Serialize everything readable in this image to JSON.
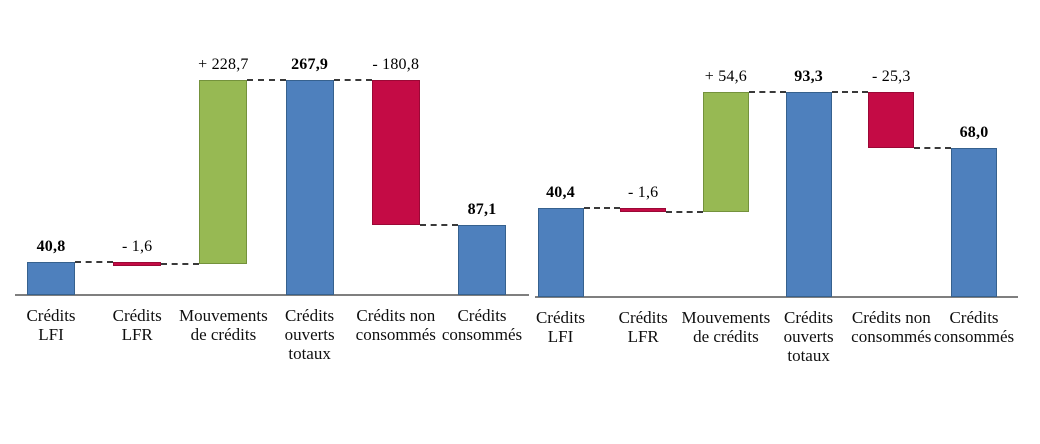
{
  "figure": {
    "background": "#ffffff"
  },
  "colors": {
    "total_bar": "#4E80BD",
    "total_bar_border": "#36618E",
    "increase_bar": "#97B953",
    "increase_bar_border": "#74923C",
    "decrease_bar": "#C40B45",
    "decrease_bar_border": "#9B0836",
    "axis_line": "#7F7F7F",
    "connector_line": "#3A3A3A",
    "text": "#000000"
  },
  "chart_data": [
    {
      "type": "waterfall",
      "side": "left",
      "title": "",
      "xlabel": "",
      "ylabel": "",
      "ylim": [
        0,
        267.9
      ],
      "grid": false,
      "legend": false,
      "categories": [
        "Crédits LFI",
        "Crédits LFR",
        "Mouvements de crédits",
        "Crédits ouverts totaux",
        "Crédits non consommés",
        "Crédits consommés"
      ],
      "bars": [
        {
          "category_lines": [
            "Crédits",
            "LFI"
          ],
          "value": 40.8,
          "value_label": "40,8",
          "kind": "total",
          "level_start": 0,
          "level_end": 40.8,
          "bold_label": true
        },
        {
          "category_lines": [
            "Crédits",
            "LFR"
          ],
          "value": -1.6,
          "value_label": "- 1,6",
          "kind": "decrease",
          "level_start": 40.8,
          "level_end": 39.2,
          "bold_label": false
        },
        {
          "category_lines": [
            "Mouvements",
            "de crédits"
          ],
          "value": 228.7,
          "value_label": "+ 228,7",
          "kind": "increase",
          "level_start": 39.2,
          "level_end": 267.9,
          "bold_label": false
        },
        {
          "category_lines": [
            "Crédits",
            "ouverts",
            "totaux"
          ],
          "value": 267.9,
          "value_label": "267,9",
          "kind": "total",
          "level_start": 0,
          "level_end": 267.9,
          "bold_label": true
        },
        {
          "category_lines": [
            "Crédits non",
            "consommés"
          ],
          "value": -180.8,
          "value_label": "- 180,8",
          "kind": "decrease",
          "level_start": 267.9,
          "level_end": 87.1,
          "bold_label": false
        },
        {
          "category_lines": [
            "Crédits",
            "consommés"
          ],
          "value": 87.1,
          "value_label": "87,1",
          "kind": "total",
          "level_start": 0,
          "level_end": 87.1,
          "bold_label": true
        }
      ]
    },
    {
      "type": "waterfall",
      "side": "right",
      "title": "",
      "xlabel": "",
      "ylabel": "",
      "ylim": [
        0,
        93.3
      ],
      "grid": false,
      "legend": false,
      "categories": [
        "Crédits LFI",
        "Crédits LFR",
        "Mouvements de crédits",
        "Crédits ouverts totaux",
        "Crédits non consommés",
        "Crédits consommés"
      ],
      "bars": [
        {
          "category_lines": [
            "Crédits",
            "LFI"
          ],
          "value": 40.4,
          "value_label": "40,4",
          "kind": "total",
          "level_start": 0,
          "level_end": 40.4,
          "bold_label": true
        },
        {
          "category_lines": [
            "Crédits",
            "LFR"
          ],
          "value": -1.6,
          "value_label": "- 1,6",
          "kind": "decrease",
          "level_start": 40.4,
          "level_end": 38.8,
          "bold_label": false
        },
        {
          "category_lines": [
            "Mouvements",
            "de crédits"
          ],
          "value": 54.6,
          "value_label": "+ 54,6",
          "kind": "increase",
          "level_start": 38.8,
          "level_end": 93.3,
          "bold_label": false
        },
        {
          "category_lines": [
            "Crédits",
            "ouverts",
            "totaux"
          ],
          "value": 93.3,
          "value_label": "93,3",
          "kind": "total",
          "level_start": 0,
          "level_end": 93.3,
          "bold_label": true
        },
        {
          "category_lines": [
            "Crédits non",
            "consommés"
          ],
          "value": -25.3,
          "value_label": "- 25,3",
          "kind": "decrease",
          "level_start": 93.3,
          "level_end": 68.0,
          "bold_label": false
        },
        {
          "category_lines": [
            "Crédits",
            "consommés"
          ],
          "value": 68.0,
          "value_label": "68,0",
          "kind": "total",
          "level_start": 0,
          "level_end": 68.0,
          "bold_label": true
        }
      ]
    }
  ]
}
